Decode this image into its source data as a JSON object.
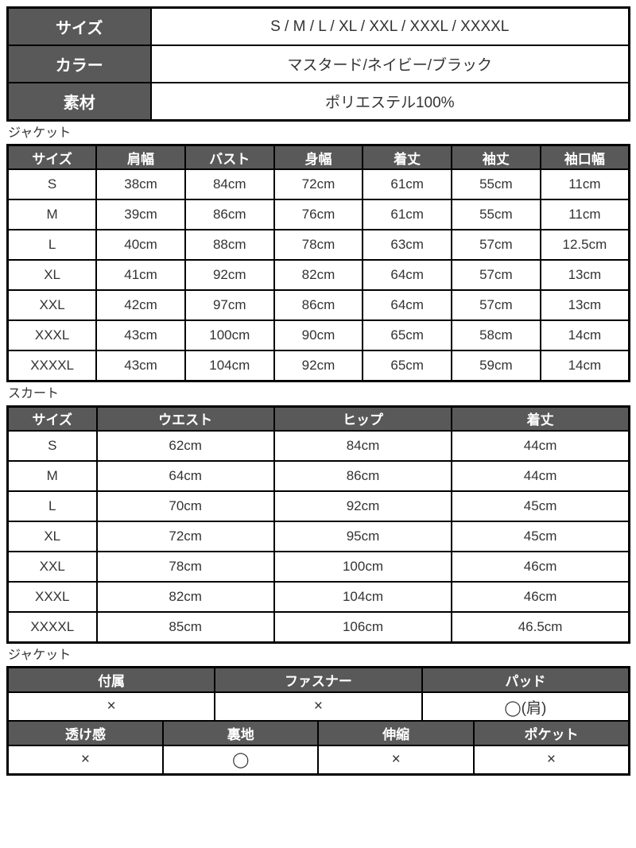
{
  "info": {
    "rows": [
      {
        "label": "サイズ",
        "value": "S / M / L / XL / XXL / XXXL / XXXXL"
      },
      {
        "label": "カラー",
        "value": "マスタード/ネイビー/ブラック"
      },
      {
        "label": "素材",
        "value": "ポリエステル100%"
      }
    ]
  },
  "jacket": {
    "section_label": "ジャケット",
    "headers": [
      "サイズ",
      "肩幅",
      "バスト",
      "身幅",
      "着丈",
      "袖丈",
      "袖口幅"
    ],
    "rows": [
      [
        "S",
        "38cm",
        "84cm",
        "72cm",
        "61cm",
        "55cm",
        "11cm"
      ],
      [
        "M",
        "39cm",
        "86cm",
        "76cm",
        "61cm",
        "55cm",
        "11cm"
      ],
      [
        "L",
        "40cm",
        "88cm",
        "78cm",
        "63cm",
        "57cm",
        "12.5cm"
      ],
      [
        "XL",
        "41cm",
        "92cm",
        "82cm",
        "64cm",
        "57cm",
        "13cm"
      ],
      [
        "XXL",
        "42cm",
        "97cm",
        "86cm",
        "64cm",
        "57cm",
        "13cm"
      ],
      [
        "XXXL",
        "43cm",
        "100cm",
        "90cm",
        "65cm",
        "58cm",
        "14cm"
      ],
      [
        "XXXXL",
        "43cm",
        "104cm",
        "92cm",
        "65cm",
        "59cm",
        "14cm"
      ]
    ]
  },
  "skirt": {
    "section_label": "スカート",
    "headers": [
      "サイズ",
      "ウエスト",
      "ヒップ",
      "着丈"
    ],
    "rows": [
      [
        "S",
        "62cm",
        "84cm",
        "44cm"
      ],
      [
        "M",
        "64cm",
        "86cm",
        "44cm"
      ],
      [
        "L",
        "70cm",
        "92cm",
        "45cm"
      ],
      [
        "XL",
        "72cm",
        "95cm",
        "45cm"
      ],
      [
        "XXL",
        "78cm",
        "100cm",
        "46cm"
      ],
      [
        "XXXL",
        "82cm",
        "104cm",
        "46cm"
      ],
      [
        "XXXXL",
        "85cm",
        "106cm",
        "46.5cm"
      ]
    ]
  },
  "features": {
    "section_label": "ジャケット",
    "row1_headers": [
      "付属",
      "ファスナー",
      "パッド"
    ],
    "row1_values": [
      "×",
      "×",
      "◯(肩)"
    ],
    "row2_headers": [
      "透け感",
      "裏地",
      "伸縮",
      "ポケット"
    ],
    "row2_values": [
      "×",
      "◯",
      "×",
      "×"
    ]
  },
  "colors": {
    "header_bg": "#595959",
    "header_text": "#ffffff",
    "body_text": "#333333",
    "border": "#000000"
  }
}
